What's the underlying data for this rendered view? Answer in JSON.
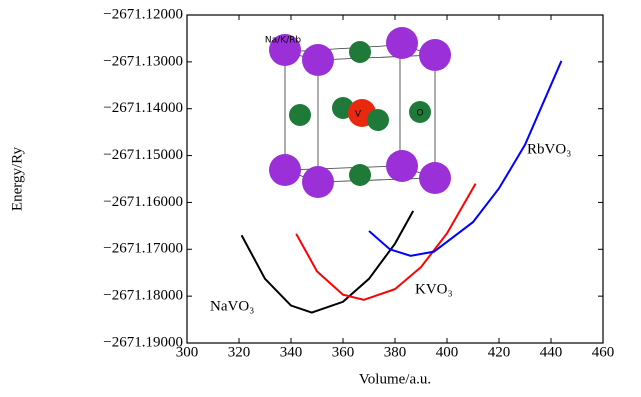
{
  "chart_data": {
    "type": "line",
    "x_label": "Volume/a.u.",
    "y_label": "Energy/Ry",
    "xlim": [
      300,
      460
    ],
    "xticks": [
      300,
      320,
      340,
      360,
      380,
      400,
      420,
      440,
      460
    ],
    "ylim": [
      -2671.19,
      -2671.12
    ],
    "yticks": [
      {
        "value": -2671.19,
        "label": "−2671.19000"
      },
      {
        "value": -2671.18,
        "label": "−2671.18000"
      },
      {
        "value": -2671.17,
        "label": "−2671.17000"
      },
      {
        "value": -2671.16,
        "label": "−2671.16000"
      },
      {
        "value": -2671.15,
        "label": "−2671.15000"
      },
      {
        "value": -2671.14,
        "label": "−2671.14000"
      },
      {
        "value": -2671.13,
        "label": "−2671.13000"
      },
      {
        "value": -2671.12,
        "label": "−2671.12000"
      }
    ],
    "series": [
      {
        "name": "NaVO₃",
        "color": "#000000",
        "x": [
          321,
          330,
          340,
          348,
          360,
          370,
          380,
          387
        ],
        "values": [
          -2671.167,
          -2671.1763,
          -2671.182,
          -2671.1835,
          -2671.1812,
          -2671.1763,
          -2671.1688,
          -2671.1618
        ]
      },
      {
        "name": "KVO₃",
        "color": "#ff0000",
        "x": [
          342,
          350,
          360,
          368,
          380,
          390,
          400,
          411
        ],
        "values": [
          -2671.1667,
          -2671.1747,
          -2671.1797,
          -2671.1808,
          -2671.1785,
          -2671.1738,
          -2671.1666,
          -2671.156
        ]
      },
      {
        "name": "RbVO₃",
        "color": "#0000ff",
        "x": [
          370,
          378,
          386,
          395,
          410,
          420,
          430,
          444
        ],
        "values": [
          -2671.1661,
          -2671.17,
          -2671.1714,
          -2671.1705,
          -2671.1642,
          -2671.157,
          -2671.1477,
          -2671.1298
        ]
      }
    ],
    "inset_labels": [
      "Na/K/Rb",
      "V",
      "O"
    ]
  }
}
